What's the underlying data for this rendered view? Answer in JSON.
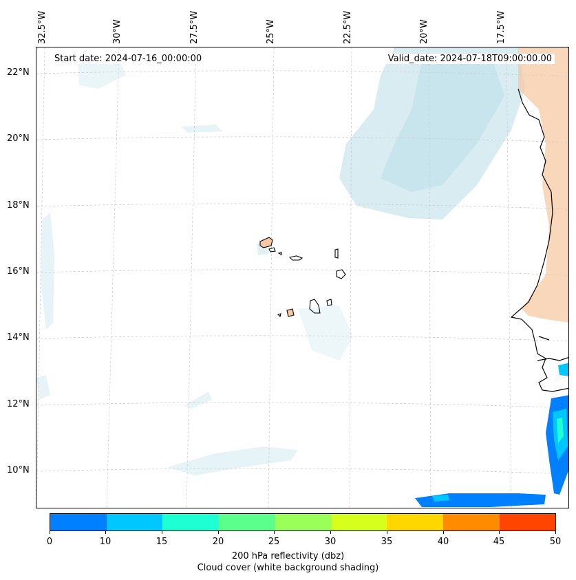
{
  "map": {
    "start_date_text": "Start date: 2024-07-16_00:00:00",
    "valid_date_text": "Valid_date: 2024-07-18T09:00:00.00",
    "lon_labels": [
      "32.5°W",
      "30°W",
      "27.5°W",
      "25°W",
      "22.5°W",
      "20°W",
      "17.5°W"
    ],
    "lat_labels": [
      "22°N",
      "20°N",
      "18°N",
      "16°N",
      "14°N",
      "12°N",
      "10°N"
    ]
  },
  "colorbar": {
    "ticks": [
      "0",
      "10",
      "15",
      "20",
      "25",
      "30",
      "35",
      "40",
      "45",
      "50"
    ],
    "colors": [
      "#0080ff",
      "#00c8ff",
      "#1effd4",
      "#5aff8c",
      "#9aff58",
      "#d6ff1e",
      "#ffd700",
      "#ff8c00",
      "#ff4500"
    ],
    "label": "200 hPa reflectivity (dbz)",
    "sublabel": "Cloud cover (white background shading)"
  },
  "colors": {
    "cloud": "#b8dde8",
    "land_warm": "#f6c9a4",
    "reflectivity_low": "#0080ff",
    "reflectivity_mid": "#00c8ff",
    "reflectivity_high": "#1effd4"
  }
}
